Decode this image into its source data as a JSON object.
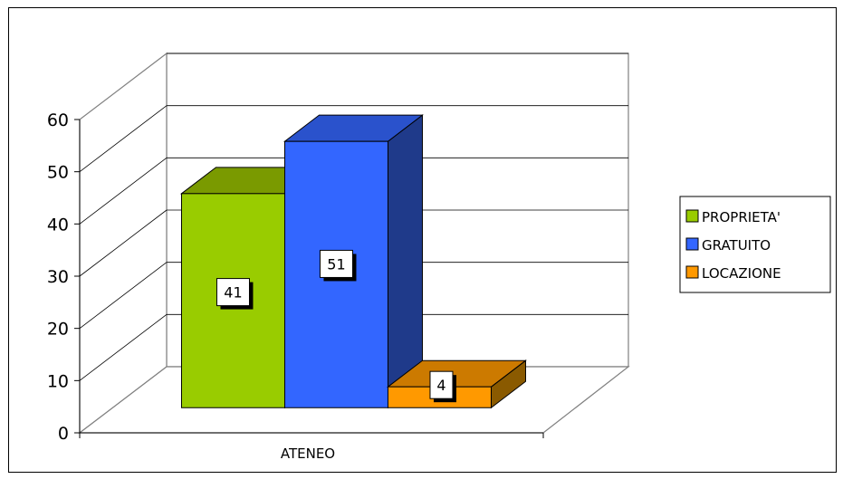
{
  "chart_data": {
    "type": "bar",
    "categories": [
      "ATENEO"
    ],
    "series": [
      {
        "name": "PROPRIETA'",
        "values": [
          41
        ],
        "color": "#99cc00",
        "top_color": "#7a9a00",
        "side_color": "#5f7a00"
      },
      {
        "name": "GRATUITO",
        "values": [
          51
        ],
        "color": "#3366ff",
        "top_color": "#2a52cc",
        "side_color": "#1f3a8a"
      },
      {
        "name": "LOCAZIONE",
        "values": [
          4
        ],
        "color": "#ff9900",
        "top_color": "#cc7a00",
        "side_color": "#8a5a00"
      }
    ],
    "yticks": [
      "0",
      "10",
      "20",
      "30",
      "40",
      "50",
      "60"
    ],
    "ylim": [
      0,
      60
    ],
    "grid": true,
    "legend_position": "right",
    "three_d": true
  }
}
